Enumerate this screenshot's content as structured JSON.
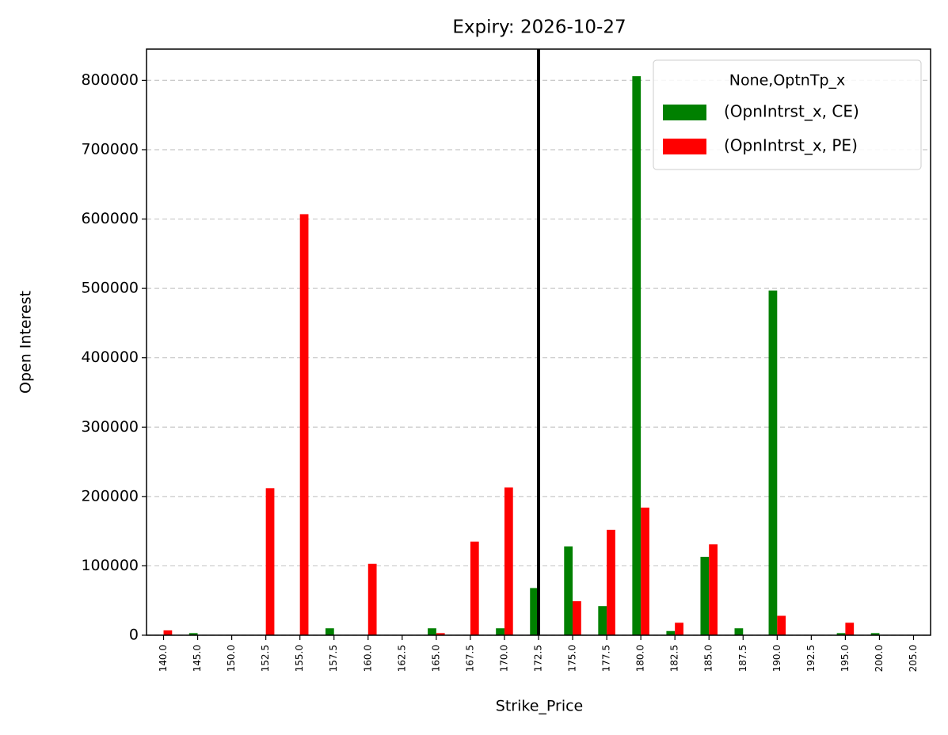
{
  "chart_data": {
    "type": "bar",
    "title": "Expiry: 2026-10-27",
    "xlabel": "Strike_Price",
    "ylabel": "Open Interest",
    "categories": [
      "140.0",
      "145.0",
      "150.0",
      "152.5",
      "155.0",
      "157.5",
      "160.0",
      "162.5",
      "165.0",
      "167.5",
      "170.0",
      "172.5",
      "175.0",
      "177.5",
      "180.0",
      "182.5",
      "185.0",
      "187.5",
      "190.0",
      "192.5",
      "195.0",
      "200.0",
      "205.0"
    ],
    "series": [
      {
        "name": "(OpnIntrst_x, CE)",
        "color": "#008000",
        "values": [
          0,
          3000,
          0,
          0,
          0,
          10000,
          0,
          0,
          10000,
          0,
          10000,
          68000,
          128000,
          42000,
          806000,
          6000,
          113000,
          10000,
          497000,
          0,
          3000,
          3000,
          0
        ]
      },
      {
        "name": "(OpnIntrst_x, PE)",
        "color": "#ff0000",
        "values": [
          7000,
          0,
          0,
          212000,
          607000,
          0,
          103000,
          0,
          3000,
          135000,
          213000,
          0,
          49000,
          152000,
          184000,
          18000,
          131000,
          0,
          28000,
          0,
          18000,
          0,
          0
        ]
      }
    ],
    "legend_title": "None,OptnTp_x",
    "legend_position": "upper right",
    "ylim": [
      0,
      845000
    ],
    "yticks": [
      0,
      100000,
      200000,
      300000,
      400000,
      500000,
      600000,
      700000,
      800000
    ],
    "grid": true,
    "vline_category": "172.5"
  }
}
